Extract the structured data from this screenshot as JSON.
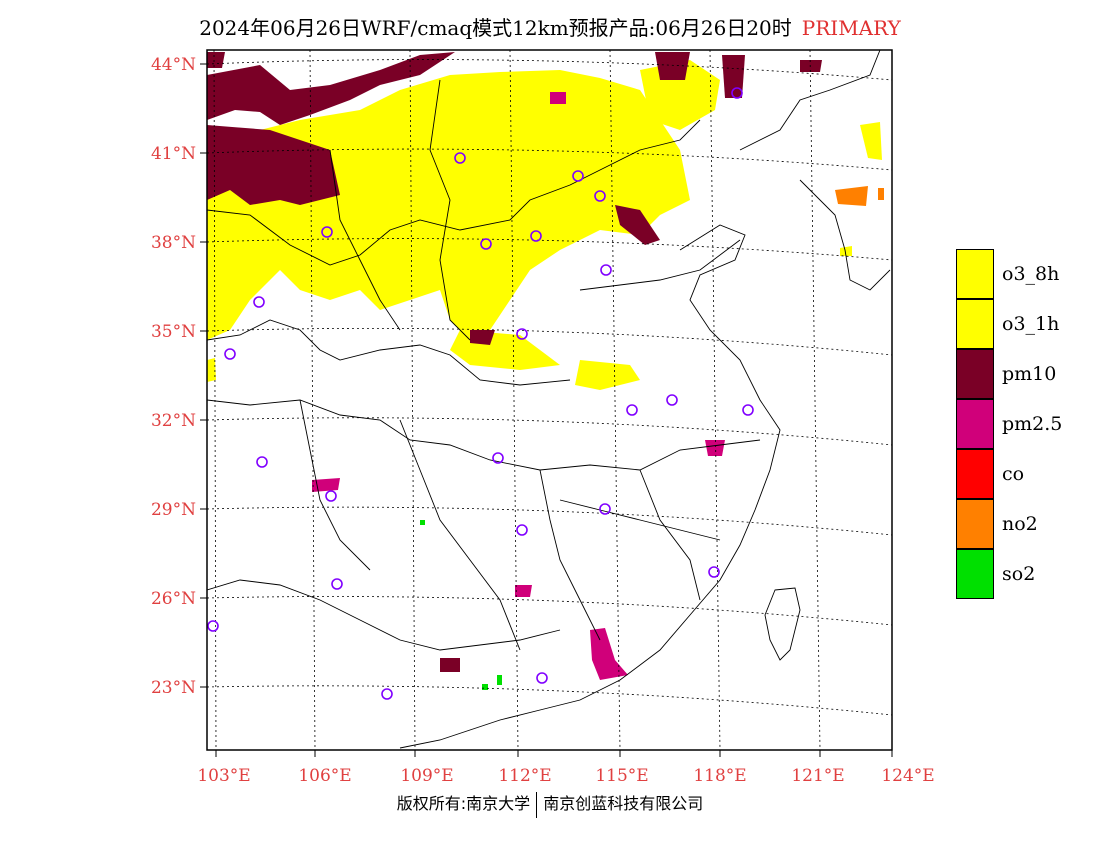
{
  "title": "2024年06月26日WRF/cmaq模式12km预报产品:06月26日20时",
  "title_tag": "PRIMARY",
  "lat_labels": [
    "44°N",
    "41°N",
    "38°N",
    "35°N",
    "32°N",
    "29°N",
    "26°N",
    "23°N"
  ],
  "lon_labels": [
    "103°E",
    "106°E",
    "109°E",
    "112°E",
    "115°E",
    "118°E",
    "121°E",
    "124°E"
  ],
  "legend": [
    {
      "label": "o3_8h",
      "color": "#ffff00"
    },
    {
      "label": "o3_1h",
      "color": "#ffff00"
    },
    {
      "label": "pm10",
      "color": "#7a0026"
    },
    {
      "label": "pm2.5",
      "color": "#d0007a"
    },
    {
      "label": "co",
      "color": "#ff0000"
    },
    {
      "label": "no2",
      "color": "#ff8000"
    },
    {
      "label": "so2",
      "color": "#00e000"
    }
  ],
  "footer_left": "版权所有:南京大学",
  "footer_right": "南京创蓝科技有限公司",
  "station_color": "#8000ff"
}
